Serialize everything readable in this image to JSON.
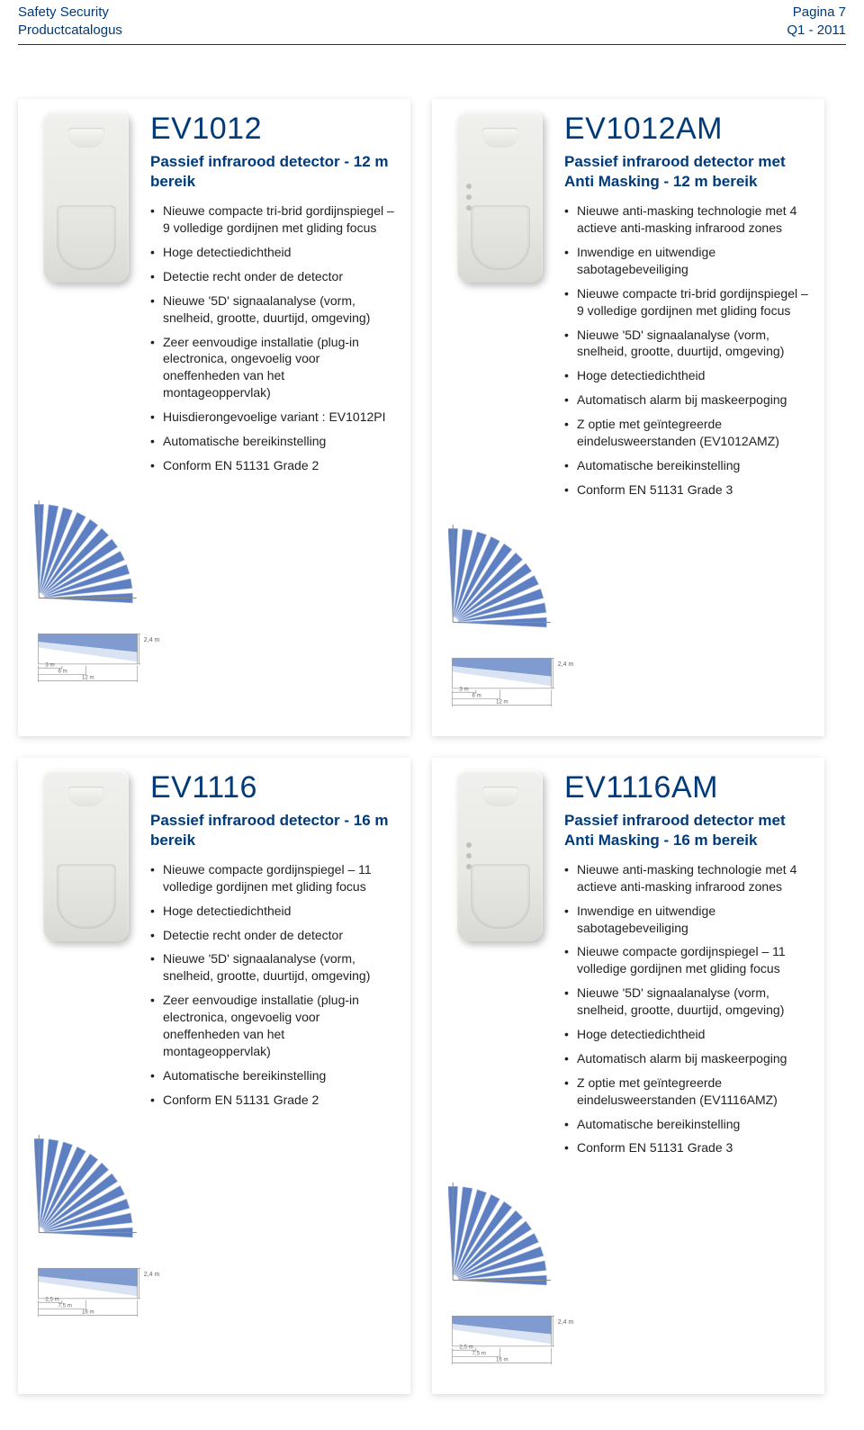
{
  "colors": {
    "brand": "#003a78",
    "text": "#222222",
    "fan_fill": "#5e7fc2",
    "fan_light": "#c0cfe8",
    "side_dark": "#7f9bd0",
    "side_light": "#d9e3f3",
    "shadow": "rgba(0,0,0,0.15)",
    "bg": "#ffffff"
  },
  "header": {
    "left_line1": "Safety Security",
    "left_line2": "Productcatalogus",
    "right_line1": "Pagina 7",
    "right_line2": "Q1 - 2011"
  },
  "products": [
    {
      "id": "ev1012",
      "am": false,
      "title": "EV1012",
      "subtitle": "Passief infrarood detector - 12 m bereik",
      "features": [
        "Nieuwe compacte tri-brid gordijnspiegel – 9 volledige gordijnen met gliding focus",
        "Hoge detectiedichtheid",
        "Detectie recht onder de detector",
        "Nieuwe '5D' signaalanalyse (vorm, snelheid, grootte, duurtijd, omgeving)",
        "Zeer eenvoudige installatie (plug-in electronica, ongevoelig voor oneffenheden van het montageoppervlak)",
        "Huisdierongevoelige variant : EV1012PI",
        "Automatische bereikinstelling",
        "Conform EN 51131 Grade 2"
      ],
      "range": {
        "near": "3 m",
        "mid": "6 m",
        "far": "12 m",
        "height": "2,4 m"
      }
    },
    {
      "id": "ev1012am",
      "am": true,
      "title": "EV1012AM",
      "subtitle": "Passief infrarood detector met Anti Masking - 12 m bereik",
      "features": [
        "Nieuwe anti-masking technologie met 4 actieve anti-masking infrarood zones",
        "Inwendige en uitwendige sabotagebeveiliging",
        "Nieuwe compacte tri-brid gordijnspiegel – 9 volledige gordijnen met gliding focus",
        "Nieuwe '5D' signaalanalyse (vorm, snelheid, grootte, duurtijd, omgeving)",
        "Hoge detectiedichtheid",
        "Automatisch alarm bij maskeerpoging",
        "Z optie met geïntegreerde eindelusweerstanden (EV1012AMZ)",
        "Automatische bereikinstelling",
        "Conform EN 51131 Grade 3"
      ],
      "range": {
        "near": "3 m",
        "mid": "6 m",
        "far": "12 m",
        "height": "2,4 m"
      }
    },
    {
      "id": "ev1116",
      "am": false,
      "title": "EV1116",
      "subtitle": "Passief infrarood detector - 16 m bereik",
      "features": [
        "Nieuwe compacte gordijnspiegel – 11 volledige gordijnen met gliding focus",
        "Hoge detectiedichtheid",
        "Detectie recht onder de detector",
        "Nieuwe '5D' signaalanalyse (vorm, snelheid, grootte, duurtijd, omgeving)",
        "Zeer eenvoudige installatie (plug-in electronica, ongevoelig voor oneffenheden van het montageoppervlak)",
        "Automatische bereikinstelling",
        "Conform EN 51131 Grade 2"
      ],
      "range": {
        "near": "2,5 m",
        "mid": "7,5 m",
        "far": "16 m",
        "height": "2,4 m"
      }
    },
    {
      "id": "ev1116am",
      "am": true,
      "title": "EV1116AM",
      "subtitle": "Passief infrarood detector met Anti Masking - 16 m bereik",
      "features": [
        "Nieuwe anti-masking technologie met 4 actieve anti-masking infrarood zones",
        "Inwendige en uitwendige sabotagebeveiliging",
        "Nieuwe compacte gordijnspiegel – 11 volledige gordijnen met gliding focus",
        "Nieuwe '5D' signaalanalyse (vorm, snelheid, grootte, duurtijd, omgeving)",
        "Hoge detectiedichtheid",
        "Automatisch alarm bij maskeerpoging",
        "Z optie met geïntegreerde eindelusweerstanden (EV1116AMZ)",
        "Automatische bereikinstelling",
        "Conform EN 51131 Grade 3"
      ],
      "range": {
        "near": "2,5 m",
        "mid": "7,5 m",
        "far": "16 m",
        "height": "2,4 m"
      }
    }
  ],
  "fan_diagram": {
    "type": "radial-fan",
    "vane_count": 11,
    "start_angle_deg": 0,
    "end_angle_deg": 90,
    "inner_radius": 6,
    "outer_radius": 100,
    "vane_width_deg": 6,
    "colors": {
      "vane": "#5e7fc2",
      "vane_edge": "#b8c8e4",
      "axis": "#8a8a8a"
    }
  },
  "side_diagram": {
    "type": "side-coverage",
    "colors": {
      "dark": "#7f9bd0",
      "light": "#d9e3f3",
      "line": "#9a9a9a"
    }
  }
}
